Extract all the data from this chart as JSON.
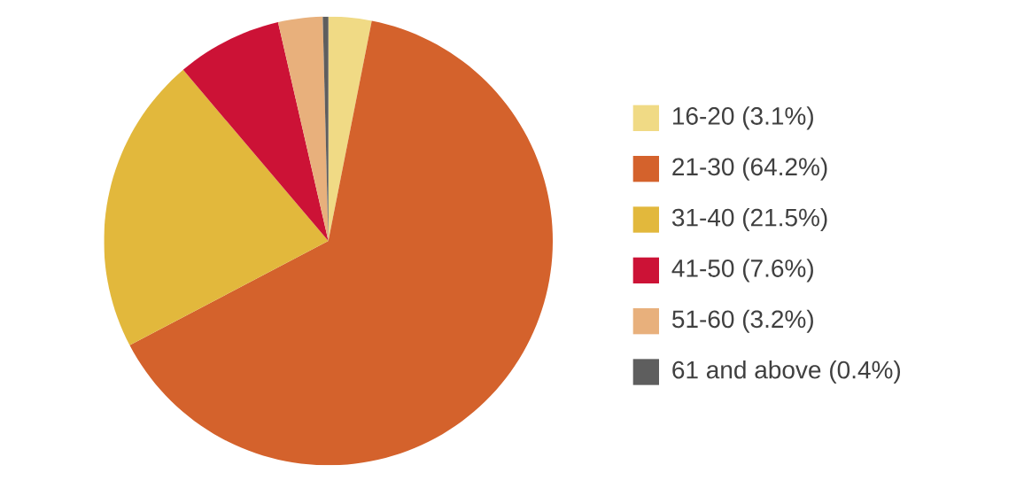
{
  "chart_data": {
    "type": "pie",
    "legend": "right",
    "categories": [
      "16-20 (3.1%)",
      "21-30 (64.2%)",
      "31-40 (21.5%)",
      "41-50 (7.6%)",
      "51-60 (3.2%)",
      "61 and above (0.4%)"
    ],
    "values": [
      3.1,
      64.2,
      21.5,
      7.6,
      3.2,
      0.4
    ],
    "colors": [
      "#f0da85",
      "#d4622c",
      "#e2b83c",
      "#cc1236",
      "#e8b07c",
      "#5e5e5e"
    ]
  }
}
